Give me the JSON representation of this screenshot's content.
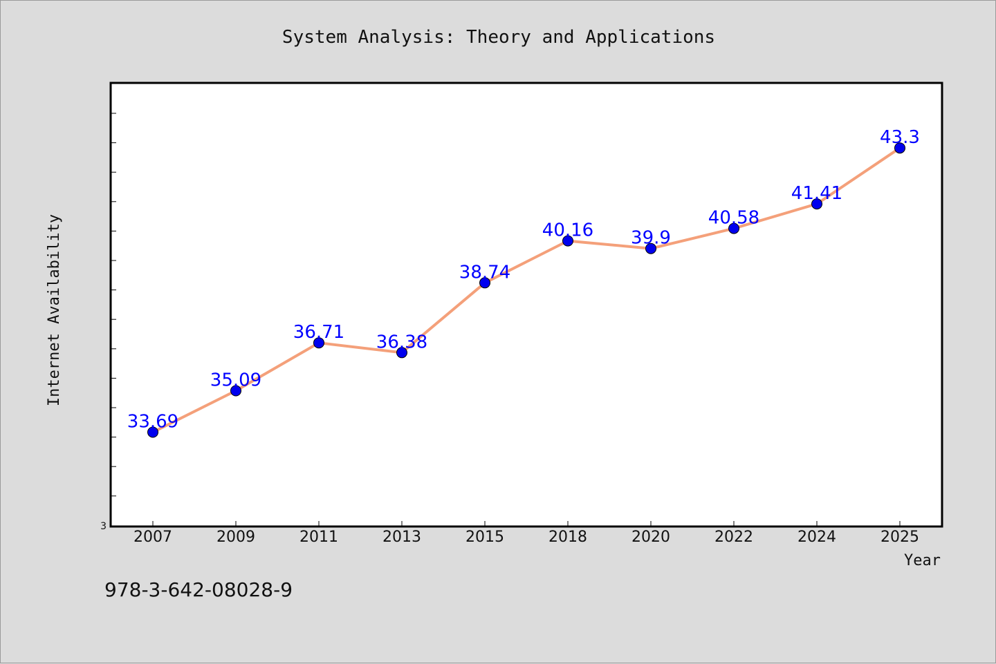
{
  "chart_data": {
    "type": "line",
    "title": "System Analysis: Theory and Applications",
    "xlabel": "Year",
    "ylabel": "Internet Availability",
    "categories": [
      "2007",
      "2009",
      "2011",
      "2013",
      "2015",
      "2018",
      "2020",
      "2022",
      "2024",
      "2025"
    ],
    "series": [
      {
        "values": [
          33.69,
          35.09,
          36.71,
          36.38,
          38.74,
          40.16,
          39.9,
          40.58,
          41.41,
          43.3
        ],
        "labels": [
          "33.69",
          "35.09",
          "36.71",
          "36.38",
          "38.74",
          "40.16",
          "39.9",
          "40.58",
          "41.41",
          "43.3"
        ],
        "line_color": "#f4a07a",
        "marker_color": "#0000ee",
        "label_color": "#0000ff"
      }
    ],
    "y_tick_labels": [
      "3"
    ],
    "ylim": [
      30.5,
      45.5
    ],
    "grid": false,
    "legend": "none"
  },
  "footer": {
    "isbn": "978-3-642-08028-9"
  }
}
